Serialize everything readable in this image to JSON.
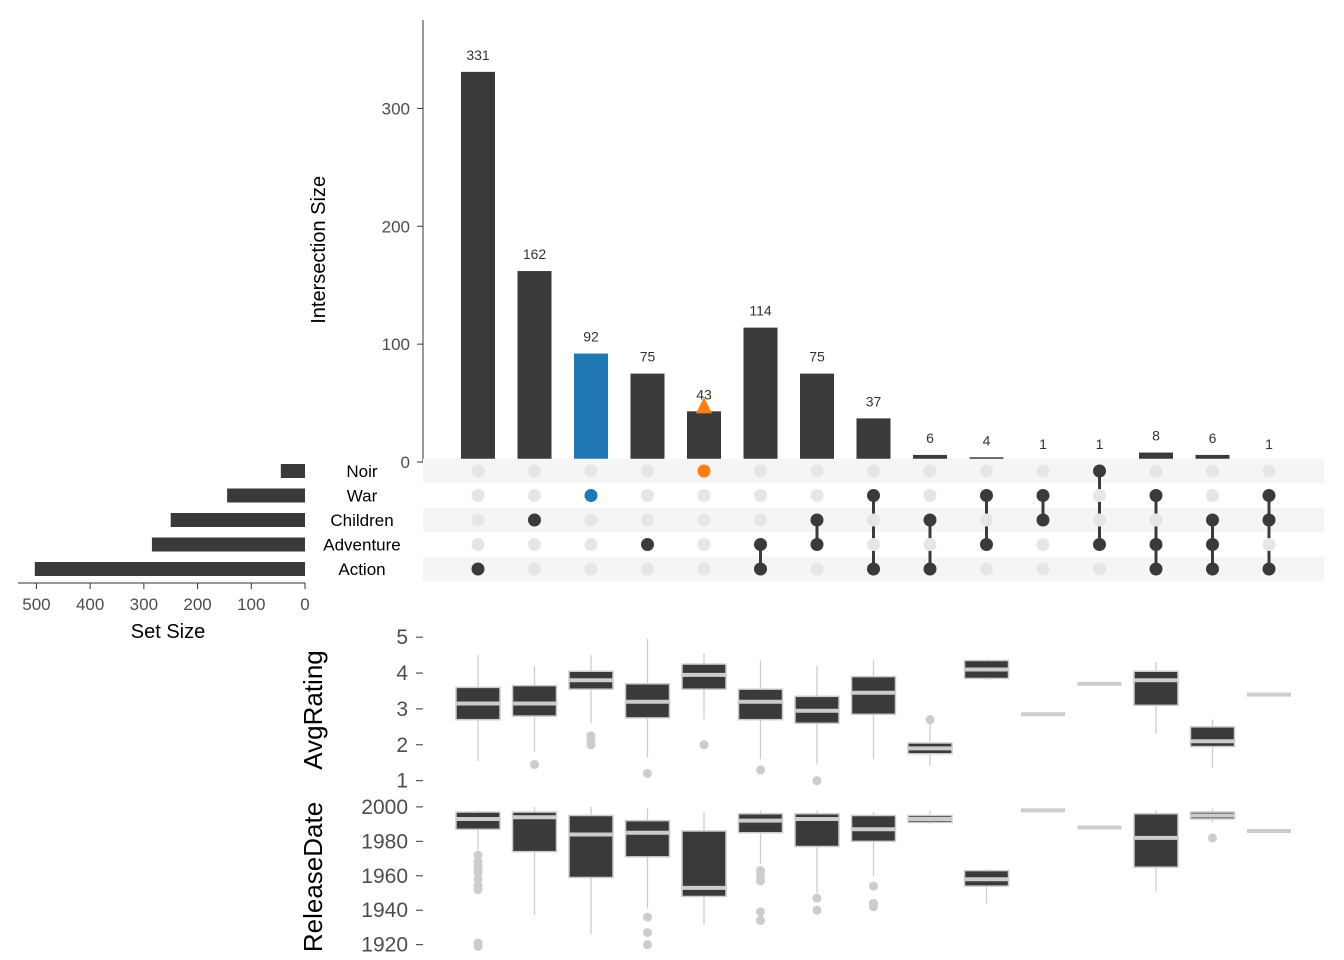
{
  "chart_data": [
    {
      "type": "bar",
      "ylabel": "Intersection Size",
      "ylim": [
        0,
        375
      ],
      "yticks": [
        0,
        100,
        200,
        300
      ],
      "values": [
        331,
        162,
        92,
        75,
        43,
        114,
        75,
        37,
        6,
        4,
        1,
        1,
        8,
        6,
        1
      ],
      "value_labels": [
        "331",
        "162",
        "92",
        "75",
        "43",
        "114",
        "75",
        "37",
        "6",
        "4",
        "1",
        "1",
        "8",
        "6",
        "1"
      ],
      "bar_color": "#3a3a3a",
      "highlight": [
        {
          "index": 2,
          "color": "#1f78b4"
        }
      ],
      "markers": [
        {
          "index": 4,
          "shape": "triangle",
          "value": 43,
          "color": "#ff7f0e"
        }
      ]
    },
    {
      "type": "bar",
      "orientation": "horizontal",
      "xlabel": "Set Size",
      "xlim": [
        525,
        0
      ],
      "xticks": [
        500,
        400,
        300,
        200,
        100,
        0
      ],
      "sets": [
        "Noir",
        "War",
        "Children",
        "Adventure",
        "Action"
      ],
      "values": [
        45,
        145,
        250,
        285,
        503
      ],
      "bar_color": "#3a3a3a"
    },
    {
      "type": "matrix",
      "sets": [
        "Noir",
        "War",
        "Children",
        "Adventure",
        "Action"
      ],
      "membership": [
        [
          4
        ],
        [
          2
        ],
        [
          1
        ],
        [
          3
        ],
        [
          0
        ],
        [
          3,
          4
        ],
        [
          2,
          3
        ],
        [
          1,
          4
        ],
        [
          2,
          4
        ],
        [
          1,
          3
        ],
        [
          1,
          2
        ],
        [
          0,
          3
        ],
        [
          1,
          3,
          4
        ],
        [
          2,
          3,
          4
        ],
        [
          1,
          2,
          4
        ]
      ],
      "active_color": "#3a3a3a",
      "inactive_color": "#e6e6e6",
      "special_dots": [
        {
          "column": 2,
          "row": 1,
          "color": "#1f78b4"
        },
        {
          "column": 4,
          "row": 0,
          "color": "#ff7f0e"
        }
      ]
    },
    {
      "type": "boxplot",
      "ylabel": "AvgRating",
      "ylim": [
        0.6,
        5.2
      ],
      "yticks": [
        1,
        2,
        3,
        4,
        5
      ],
      "boxes": [
        {
          "q1": 2.7,
          "median": 3.15,
          "q3": 3.6,
          "wlo": 1.55,
          "whi": 4.5,
          "outliers": []
        },
        {
          "q1": 2.8,
          "median": 3.15,
          "q3": 3.65,
          "wlo": 1.8,
          "whi": 4.2,
          "outliers": [
            1.45
          ]
        },
        {
          "q1": 3.55,
          "median": 3.8,
          "q3": 4.05,
          "wlo": 2.6,
          "whi": 4.5,
          "outliers": [
            2.25,
            2.15,
            2.0
          ]
        },
        {
          "q1": 2.75,
          "median": 3.2,
          "q3": 3.7,
          "wlo": 1.65,
          "whi": 4.95,
          "outliers": [
            1.2
          ]
        },
        {
          "q1": 3.55,
          "median": 3.95,
          "q3": 4.25,
          "wlo": 2.7,
          "whi": 4.55,
          "outliers": [
            2.0
          ]
        },
        {
          "q1": 2.7,
          "median": 3.2,
          "q3": 3.55,
          "wlo": 1.6,
          "whi": 4.35,
          "outliers": [
            1.3
          ]
        },
        {
          "q1": 2.6,
          "median": 2.95,
          "q3": 3.35,
          "wlo": 1.45,
          "whi": 4.2,
          "outliers": [
            1.0
          ]
        },
        {
          "q1": 2.85,
          "median": 3.45,
          "q3": 3.9,
          "wlo": 1.6,
          "whi": 4.35,
          "outliers": []
        },
        {
          "q1": 1.75,
          "median": 1.9,
          "q3": 2.05,
          "wlo": 1.4,
          "whi": 2.7,
          "outliers": [
            2.7
          ]
        },
        {
          "q1": 3.85,
          "median": 4.1,
          "q3": 4.35,
          "wlo": 3.8,
          "whi": 4.4,
          "outliers": []
        },
        {
          "q1": 2.85,
          "median": 2.85,
          "q3": 2.85,
          "wlo": 2.85,
          "whi": 2.85,
          "outliers": []
        },
        {
          "q1": 3.7,
          "median": 3.7,
          "q3": 3.7,
          "wlo": 3.7,
          "whi": 3.7,
          "outliers": []
        },
        {
          "q1": 3.1,
          "median": 3.8,
          "q3": 4.05,
          "wlo": 2.3,
          "whi": 4.3,
          "outliers": []
        },
        {
          "q1": 1.95,
          "median": 2.1,
          "q3": 2.5,
          "wlo": 1.35,
          "whi": 2.7,
          "outliers": []
        },
        {
          "q1": 3.4,
          "median": 3.4,
          "q3": 3.4,
          "wlo": 3.4,
          "whi": 3.4,
          "outliers": []
        }
      ],
      "box_fill": "#3a3a3a",
      "line_color": "#cccccc"
    },
    {
      "type": "boxplot",
      "ylabel": "ReleaseDate",
      "ylim": [
        1914,
        2004
      ],
      "yticks": [
        1920,
        1940,
        1960,
        1980,
        2000
      ],
      "boxes": [
        {
          "q1": 1987,
          "median": 1993,
          "q3": 1997,
          "wlo": 1975,
          "whi": 1998,
          "outliers": [
            1972,
            1968,
            1966,
            1964,
            1962,
            1958,
            1954,
            1952,
            1921,
            1919
          ]
        },
        {
          "q1": 1974,
          "median": 1994,
          "q3": 1997,
          "wlo": 1937,
          "whi": 2000,
          "outliers": []
        },
        {
          "q1": 1959,
          "median": 1984,
          "q3": 1995,
          "wlo": 1926,
          "whi": 2000,
          "outliers": []
        },
        {
          "q1": 1971,
          "median": 1985,
          "q3": 1992,
          "wlo": 1941,
          "whi": 1999,
          "outliers": [
            1936,
            1927,
            1920
          ]
        },
        {
          "q1": 1948,
          "median": 1953,
          "q3": 1986,
          "wlo": 1932,
          "whi": 1997,
          "outliers": []
        },
        {
          "q1": 1985,
          "median": 1992,
          "q3": 1996,
          "wlo": 1967,
          "whi": 1998,
          "outliers": [
            1963,
            1960,
            1957,
            1939,
            1934
          ]
        },
        {
          "q1": 1977,
          "median": 1993,
          "q3": 1996,
          "wlo": 1950,
          "whi": 1998,
          "outliers": [
            1947,
            1940
          ]
        },
        {
          "q1": 1980,
          "median": 1987,
          "q3": 1995,
          "wlo": 1960,
          "whi": 1997,
          "outliers": [
            1954,
            1944,
            1942
          ]
        },
        {
          "q1": 1991,
          "median": 1993,
          "q3": 1995,
          "wlo": 1990,
          "whi": 1998,
          "outliers": []
        },
        {
          "q1": 1954,
          "median": 1958,
          "q3": 1963,
          "wlo": 1944,
          "whi": 1964,
          "outliers": []
        },
        {
          "q1": 1998,
          "median": 1998,
          "q3": 1998,
          "wlo": 1998,
          "whi": 1998,
          "outliers": []
        },
        {
          "q1": 1988,
          "median": 1988,
          "q3": 1988,
          "wlo": 1988,
          "whi": 1988,
          "outliers": []
        },
        {
          "q1": 1965,
          "median": 1982,
          "q3": 1996,
          "wlo": 1951,
          "whi": 1998,
          "outliers": []
        },
        {
          "q1": 1993,
          "median": 1995,
          "q3": 1997,
          "wlo": 1991,
          "whi": 1999,
          "outliers": [
            1982
          ]
        },
        {
          "q1": 1986,
          "median": 1986,
          "q3": 1986,
          "wlo": 1986,
          "whi": 1986,
          "outliers": []
        }
      ],
      "box_fill": "#3a3a3a",
      "line_color": "#cccccc"
    }
  ]
}
